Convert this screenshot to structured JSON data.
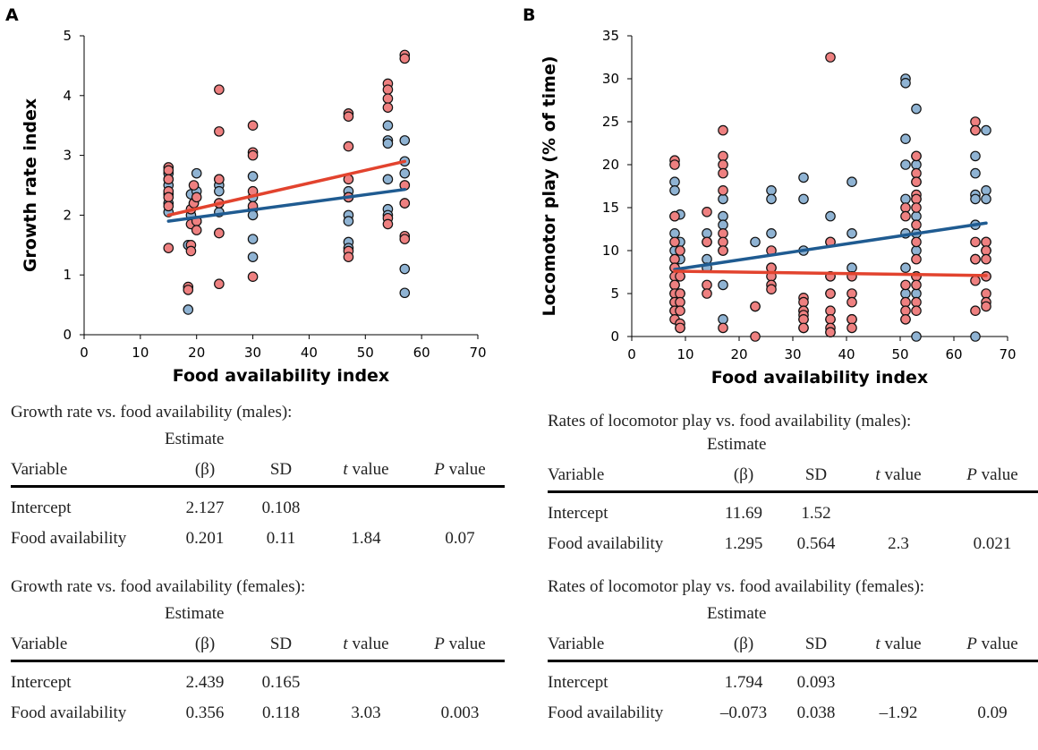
{
  "chart_data": [
    {
      "panel": "A",
      "type": "scatter",
      "xlabel": "Food availability index",
      "ylabel": "Growth rate index",
      "xlim": [
        0,
        70
      ],
      "ylim": [
        0,
        5
      ],
      "xticks": [
        0,
        10,
        20,
        30,
        40,
        50,
        60,
        70
      ],
      "yticks": [
        0,
        1,
        2,
        3,
        4,
        5
      ],
      "grid": false,
      "colors": {
        "males": "#1f5b91",
        "females": "#e2432e",
        "male_point": "#8fb3d3",
        "female_point": "#ee8080"
      },
      "series": [
        {
          "x": [
            15,
            15,
            15,
            15,
            15,
            15,
            18.5,
            18.5,
            19,
            19,
            19.5,
            20,
            20,
            20,
            24,
            24,
            24,
            24,
            24,
            24,
            30,
            30,
            30,
            30,
            30,
            30,
            47,
            47,
            47,
            47,
            47,
            47,
            54,
            54,
            54,
            54,
            54,
            54,
            57,
            57,
            57,
            57,
            57,
            57,
            57
          ],
          "y": [
            2.6,
            2.7,
            2.5,
            2.35,
            2.2,
            2.05,
            0.42,
            1.5,
            2.0,
            2.35,
            2.2,
            2.7,
            2.4,
            1.9,
            2.6,
            2.5,
            2.4,
            2.2,
            2.05,
            1.7,
            2.65,
            2.3,
            2.1,
            2.0,
            1.6,
            1.3,
            2.4,
            2.3,
            2.0,
            1.9,
            1.55,
            1.45,
            3.5,
            3.25,
            3.2,
            2.6,
            2.1,
            2.0,
            3.25,
            2.9,
            2.7,
            2.5,
            2.2,
            1.1,
            0.7
          ]
        },
        {
          "x": [
            15,
            15,
            15,
            15,
            15,
            15,
            15,
            18.5,
            18.5,
            19,
            19,
            19,
            19,
            19.5,
            19.5,
            20,
            20,
            20,
            24,
            24,
            24,
            24,
            24,
            24,
            30,
            30,
            30,
            30,
            30,
            30,
            47,
            47,
            47,
            47,
            47,
            47,
            47,
            54,
            54,
            54,
            54,
            54,
            54,
            57,
            57,
            57,
            57,
            57,
            57
          ],
          "y": [
            2.8,
            2.75,
            2.6,
            2.4,
            2.3,
            2.15,
            1.45,
            0.8,
            0.75,
            1.5,
            1.4,
            2.1,
            1.85,
            2.2,
            2.5,
            2.3,
            1.9,
            1.75,
            4.1,
            3.4,
            2.6,
            2.2,
            1.7,
            0.85,
            3.5,
            3.05,
            3.0,
            2.4,
            2.15,
            0.97,
            3.7,
            3.65,
            3.15,
            2.6,
            2.3,
            1.4,
            1.3,
            4.2,
            4.1,
            3.95,
            3.8,
            1.95,
            1.85,
            4.68,
            4.62,
            2.5,
            2.2,
            1.65,
            1.6
          ]
        }
      ],
      "fits": [
        {
          "x": [
            15,
            57
          ],
          "y": [
            1.9,
            2.43
          ]
        },
        {
          "x": [
            15,
            57
          ],
          "y": [
            2.0,
            2.9
          ]
        }
      ]
    },
    {
      "panel": "B",
      "type": "scatter",
      "xlabel": "Food availability index",
      "ylabel": "Locomotor play (% of time)",
      "xlim": [
        0,
        70
      ],
      "ylim": [
        0,
        35
      ],
      "xticks": [
        0,
        10,
        20,
        30,
        40,
        50,
        60,
        70
      ],
      "yticks": [
        0,
        5,
        10,
        15,
        20,
        25,
        30,
        35
      ],
      "grid": false,
      "colors": {
        "males": "#1f5b91",
        "females": "#e2432e",
        "male_point": "#8fb3d3",
        "female_point": "#ee8080"
      },
      "series": [
        {
          "x": [
            8,
            8,
            8,
            8,
            8,
            8,
            8,
            8,
            8,
            8,
            9,
            9,
            9,
            9,
            9,
            9,
            14,
            14,
            14,
            14,
            17,
            17,
            17,
            17,
            17,
            17,
            23,
            23,
            26,
            26,
            26,
            26,
            32,
            32,
            32,
            32,
            32,
            32,
            37,
            37,
            37,
            37,
            37,
            37,
            41,
            41,
            41,
            41,
            51,
            51,
            51,
            51,
            51,
            51,
            51,
            51,
            51,
            53,
            53,
            53,
            53,
            53,
            53,
            53,
            53,
            53,
            53,
            53,
            64,
            64,
            64,
            64,
            64,
            64,
            64,
            64,
            66,
            66,
            66,
            66,
            66,
            66
          ],
          "y": [
            18,
            17,
            14,
            12,
            10,
            8,
            6,
            5,
            4,
            3,
            14.2,
            11,
            9,
            7,
            5,
            1,
            12,
            11,
            9,
            8,
            16,
            14,
            13,
            10,
            6,
            2,
            11,
            3.5,
            17,
            16,
            12,
            8,
            18.5,
            16,
            10,
            3,
            2,
            1,
            14,
            11,
            7,
            5,
            2,
            0.5,
            18,
            12,
            8,
            2,
            30,
            29.5,
            23,
            20,
            16,
            12,
            8,
            5,
            2,
            26.5,
            21,
            20,
            18,
            16,
            14,
            12,
            10,
            7,
            5,
            0,
            24,
            21,
            19,
            16.5,
            16,
            13,
            9,
            0,
            24,
            17,
            16,
            11,
            10,
            7
          ]
        },
        {
          "x": [
            8,
            8,
            8,
            8,
            8,
            8,
            8,
            8,
            8,
            8,
            8,
            8,
            9,
            9,
            9,
            9,
            9,
            9,
            9,
            14,
            14,
            14,
            14,
            17,
            17,
            17,
            17,
            17,
            17,
            17,
            17,
            17,
            23,
            23,
            26,
            26,
            26,
            26,
            26,
            32,
            32,
            32,
            32,
            32,
            32,
            37,
            37,
            37,
            37,
            37,
            37,
            37,
            37,
            41,
            41,
            41,
            41,
            41,
            51,
            51,
            51,
            51,
            51,
            51,
            53,
            53,
            53,
            53,
            53,
            53,
            53,
            53,
            53,
            53,
            53,
            53,
            53,
            64,
            64,
            64,
            64,
            64,
            64,
            66,
            66,
            66,
            66,
            66,
            66,
            66
          ],
          "y": [
            20.5,
            20,
            14,
            11,
            9,
            8,
            7,
            6,
            5,
            4,
            3,
            2,
            10,
            7,
            5,
            4,
            3,
            1.5,
            1,
            14.5,
            11,
            6,
            5,
            24,
            21,
            20,
            19,
            17,
            12,
            11,
            10,
            1,
            3.5,
            0,
            10,
            8,
            7,
            6,
            5.5,
            4.5,
            4,
            3,
            2.5,
            2,
            1,
            32.5,
            11,
            7,
            5,
            3,
            2,
            1,
            0.5,
            7,
            5,
            4,
            2,
            1,
            15,
            14,
            6,
            4,
            3,
            2,
            21,
            19,
            18,
            16.5,
            16,
            15,
            13,
            11,
            9,
            7,
            6,
            4,
            3,
            25,
            24,
            11,
            9,
            6.5,
            3,
            11,
            10,
            9,
            7,
            5,
            4,
            3.5
          ]
        }
      ],
      "fits": [
        {
          "x": [
            8,
            66
          ],
          "y": [
            7.8,
            13.2
          ]
        },
        {
          "x": [
            8,
            66
          ],
          "y": [
            7.6,
            7.1
          ]
        }
      ]
    }
  ],
  "panelA": {
    "label": "A",
    "stats": [
      {
        "title": "Growth rate vs. food availability (males):",
        "estimate_top": "Estimate",
        "headers": [
          "Variable",
          "(β)",
          "SD",
          "t",
          " value",
          "P",
          " value"
        ],
        "rows": [
          {
            "variable": "Intercept",
            "estimate": "2.127",
            "sd": "0.108",
            "t": "",
            "p": ""
          },
          {
            "variable": "Food availability",
            "estimate": "0.201",
            "sd": "0.11",
            "t": "1.84",
            "p": "0.07"
          }
        ]
      },
      {
        "title": "Growth rate vs. food availability (females):",
        "estimate_top": "Estimate",
        "headers": [
          "Variable",
          "(β)",
          "SD",
          "t",
          " value",
          "P",
          " value"
        ],
        "rows": [
          {
            "variable": "Intercept",
            "estimate": "2.439",
            "sd": "0.165",
            "t": "",
            "p": ""
          },
          {
            "variable": "Food availability",
            "estimate": "0.356",
            "sd": "0.118",
            "t": "3.03",
            "p": "0.003"
          }
        ]
      }
    ]
  },
  "panelB": {
    "label": "B",
    "stats": [
      {
        "title": "Rates of locomotor play vs. food availability (males):",
        "estimate_top": "Estimate",
        "headers": [
          "Variable",
          "(β)",
          "SD",
          "t",
          " value",
          "P",
          " value"
        ],
        "rows": [
          {
            "variable": "Intercept",
            "estimate": "11.69",
            "sd": "1.52",
            "t": "",
            "p": ""
          },
          {
            "variable": "Food availability",
            "estimate": "1.295",
            "sd": "0.564",
            "t": "2.3",
            "p": "0.021"
          }
        ]
      },
      {
        "title": "Rates of locomotor play vs. food availability (females):",
        "estimate_top": "Estimate",
        "headers": [
          "Variable",
          "(β)",
          "SD",
          "t",
          " value",
          "P",
          " value"
        ],
        "rows": [
          {
            "variable": "Intercept",
            "estimate": "1.794",
            "sd": "0.093",
            "t": "",
            "p": ""
          },
          {
            "variable": "Food availability",
            "estimate": "–0.073",
            "sd": "0.038",
            "t": "–1.92",
            "p": "0.09"
          }
        ]
      }
    ]
  }
}
